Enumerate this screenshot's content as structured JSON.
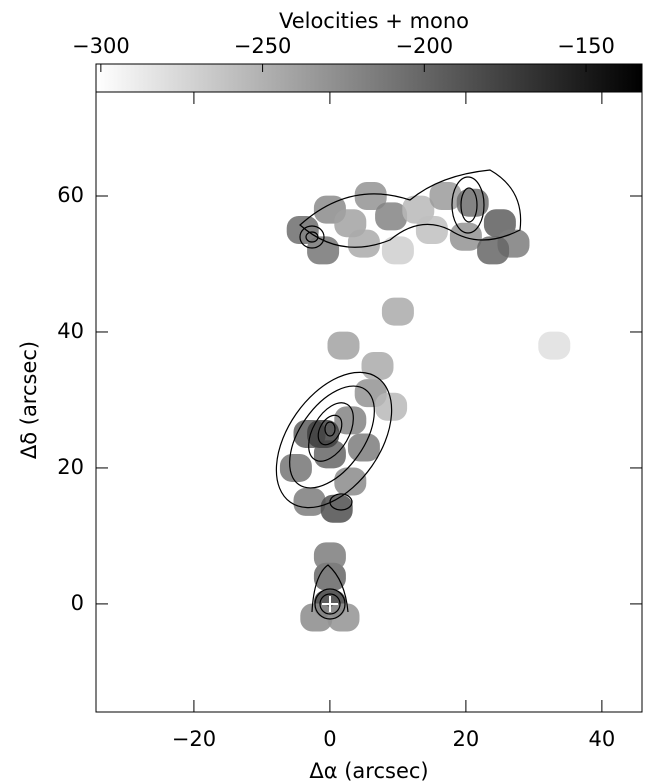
{
  "chart_data": {
    "type": "velocity-map",
    "colorbar_label": "Velocities + mono",
    "clim": [
      -301.5,
      -132.7
    ],
    "colorbar_ticks": [
      {
        "value": -300,
        "label": "−300"
      },
      {
        "value": -250,
        "label": "−250"
      },
      {
        "value": -200,
        "label": "−200"
      },
      {
        "value": -150,
        "label": "−150"
      }
    ],
    "colormap": [
      "#ffffff",
      "#000000"
    ],
    "x_label": "Δα (arcsec)",
    "y_label": "Δδ (arcsec)",
    "xlim": [
      -34.4,
      45.9
    ],
    "ylim": [
      -15.9,
      75.3
    ],
    "xticks": [
      {
        "value": -20,
        "label": "−20"
      },
      0,
      20,
      40
    ],
    "yticks": [
      0,
      20,
      40,
      60
    ],
    "x": [
      -4,
      0,
      3,
      6,
      9,
      13,
      17,
      21,
      25,
      27,
      -1,
      5,
      10,
      15,
      20,
      24,
      -3,
      0,
      3,
      6,
      7,
      9,
      -5,
      -3,
      1,
      3,
      5,
      -1,
      2,
      0,
      0,
      -2,
      2,
      0,
      10,
      33
    ],
    "y": [
      55,
      58,
      56,
      60,
      57,
      58,
      60,
      59,
      56,
      53,
      52,
      53,
      52,
      55,
      54,
      52,
      25,
      22,
      27,
      31,
      35,
      29,
      20,
      15,
      14,
      18,
      23,
      25,
      38,
      0,
      4,
      -2,
      -2,
      7,
      43,
      38
    ],
    "values": [
      -205,
      -225,
      -240,
      -230,
      -220,
      -255,
      -235,
      -205,
      -195,
      -215,
      -210,
      -245,
      -270,
      -260,
      -230,
      -200,
      -195,
      -200,
      -220,
      -230,
      -245,
      -255,
      -210,
      -215,
      -185,
      -225,
      -215,
      -175,
      -240,
      -175,
      -200,
      -225,
      -230,
      -215,
      -245,
      -280
    ]
  }
}
